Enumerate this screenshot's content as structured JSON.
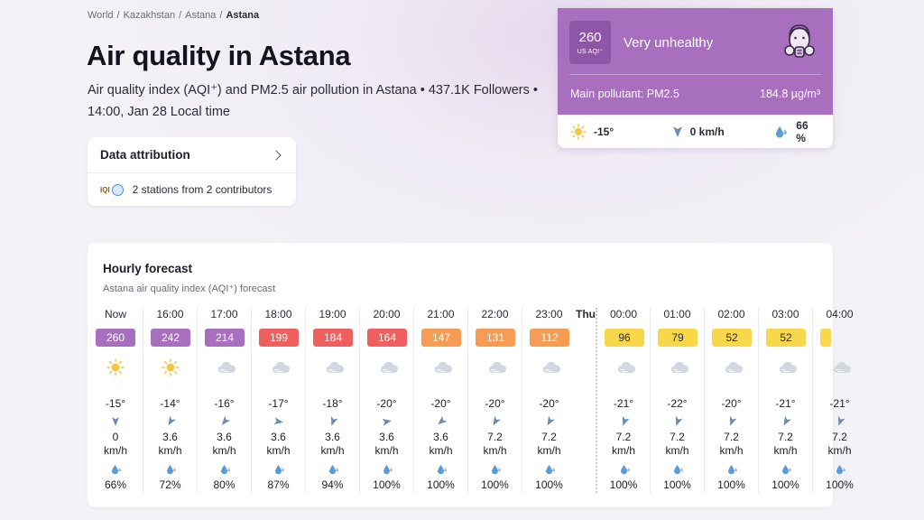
{
  "breadcrumb": [
    "World",
    "Kazakhstan",
    "Astana",
    "Astana"
  ],
  "title": "Air quality in Astana",
  "subtitle": "Air quality index (AQI⁺) and PM2.5 air pollution in Astana • 437.1K Followers • 14:00, Jan 28 Local time",
  "attribution": {
    "title": "Data attribution",
    "stations": "2 stations from 2 contributors",
    "logo_text": "IQI"
  },
  "current": {
    "aqi": "260",
    "unit": "US AQI⁺",
    "level": "Very unhealthy",
    "pollutant_label": "Main pollutant: PM2.5",
    "pollutant_value": "184.8 µg/m³",
    "temperature": "-15°",
    "wind": "0 km/h",
    "humidity": "66 %",
    "color": "#a86fbe"
  },
  "forecast": {
    "title": "Hourly forecast",
    "subtitle": "Astana air quality index (AQI⁺) forecast",
    "day_label": "Thu",
    "colors": {
      "purple": "#a86fbe",
      "red": "#ef5f5f",
      "orange": "#f79c55",
      "yellow": "#f8d84a"
    },
    "hours": [
      {
        "time": "Now",
        "aqi": "260",
        "level": "purple",
        "icon": "sun-icon",
        "temp": "-15°",
        "wind": "0",
        "unit": "km/h",
        "humidity": "66%"
      },
      {
        "time": "16:00",
        "aqi": "242",
        "level": "purple",
        "icon": "sun-icon",
        "temp": "-14°",
        "wind": "3.6",
        "unit": "km/h",
        "humidity": "72%"
      },
      {
        "time": "17:00",
        "aqi": "214",
        "level": "purple",
        "icon": "cloud-icon",
        "temp": "-16°",
        "wind": "3.6",
        "unit": "km/h",
        "humidity": "80%"
      },
      {
        "time": "18:00",
        "aqi": "199",
        "level": "red",
        "icon": "cloud-icon",
        "temp": "-17°",
        "wind": "3.6",
        "unit": "km/h",
        "humidity": "87%"
      },
      {
        "time": "19:00",
        "aqi": "184",
        "level": "red",
        "icon": "cloud-icon",
        "temp": "-18°",
        "wind": "3.6",
        "unit": "km/h",
        "humidity": "94%"
      },
      {
        "time": "20:00",
        "aqi": "164",
        "level": "red",
        "icon": "cloud-icon",
        "temp": "-20°",
        "wind": "3.6",
        "unit": "km/h",
        "humidity": "100%"
      },
      {
        "time": "21:00",
        "aqi": "147",
        "level": "orange",
        "icon": "cloud-icon",
        "temp": "-20°",
        "wind": "3.6",
        "unit": "km/h",
        "humidity": "100%"
      },
      {
        "time": "22:00",
        "aqi": "131",
        "level": "orange",
        "icon": "cloud-icon",
        "temp": "-20°",
        "wind": "7.2",
        "unit": "km/h",
        "humidity": "100%"
      },
      {
        "time": "23:00",
        "aqi": "112",
        "level": "orange",
        "icon": "cloud-icon",
        "temp": "-20°",
        "wind": "7.2",
        "unit": "km/h",
        "humidity": "100%"
      },
      {
        "time": "00:00",
        "aqi": "96",
        "level": "yellow",
        "icon": "cloud-icon",
        "temp": "-21°",
        "wind": "7.2",
        "unit": "km/h",
        "humidity": "100%"
      },
      {
        "time": "01:00",
        "aqi": "79",
        "level": "yellow",
        "icon": "cloud-icon",
        "temp": "-22°",
        "wind": "7.2",
        "unit": "km/h",
        "humidity": "100%"
      },
      {
        "time": "02:00",
        "aqi": "52",
        "level": "yellow",
        "icon": "cloud-icon",
        "temp": "-20°",
        "wind": "7.2",
        "unit": "km/h",
        "humidity": "100%"
      },
      {
        "time": "03:00",
        "aqi": "52",
        "level": "yellow",
        "icon": "cloud-icon",
        "temp": "-21°",
        "wind": "7.2",
        "unit": "km/h",
        "humidity": "100%"
      },
      {
        "time": "04:00",
        "aqi": "",
        "level": "yellow",
        "icon": "cloud-icon",
        "temp": "-21°",
        "wind": "7.2",
        "unit": "km/h",
        "humidity": "100%"
      }
    ]
  }
}
